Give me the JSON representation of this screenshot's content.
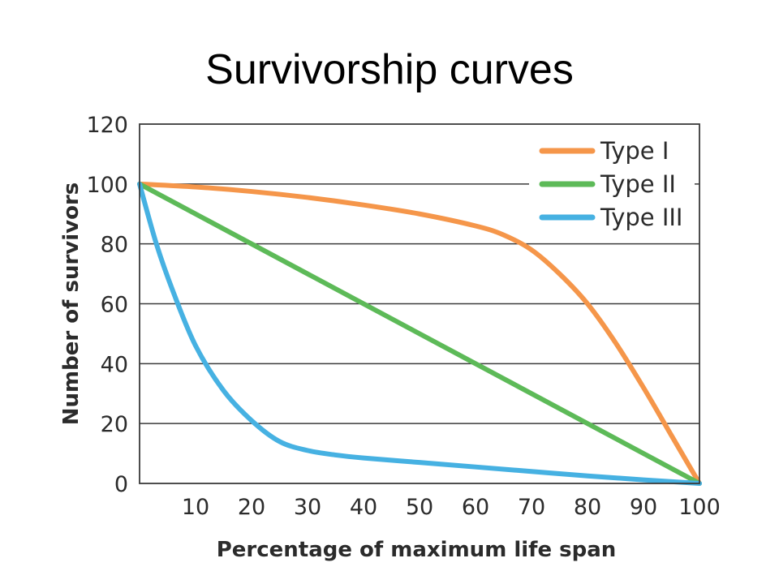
{
  "title": "Survivorship curves",
  "chart_data": {
    "type": "line",
    "xlabel": "Percentage of maximum life span",
    "ylabel": "Number of survivors",
    "xlim": [
      0,
      100
    ],
    "ylim": [
      0,
      120
    ],
    "x_ticks": [
      10,
      20,
      30,
      40,
      50,
      60,
      70,
      80,
      90,
      100
    ],
    "y_ticks": [
      0,
      20,
      40,
      60,
      80,
      100,
      120
    ],
    "grid": "horizontal",
    "legend": "top-right",
    "series": [
      {
        "name": "Type I",
        "color": "#f5964a",
        "x": [
          0,
          10,
          20,
          30,
          40,
          50,
          60,
          65,
          70,
          75,
          80,
          85,
          90,
          95,
          100
        ],
        "y": [
          100,
          99,
          97.5,
          95.5,
          93,
          90,
          86,
          83,
          78,
          70,
          60,
          47,
          32,
          16,
          0
        ]
      },
      {
        "name": "Type II",
        "color": "#5dba58",
        "x": [
          0,
          100
        ],
        "y": [
          100,
          0
        ]
      },
      {
        "name": "Type III",
        "color": "#46b1e2",
        "x": [
          0,
          3,
          6,
          10,
          15,
          20,
          25,
          30,
          35,
          40,
          50,
          60,
          70,
          80,
          90,
          100
        ],
        "y": [
          100,
          80,
          64,
          46,
          31,
          21,
          14,
          11,
          9.5,
          8.5,
          7,
          5.5,
          4,
          2.5,
          1.2,
          0
        ]
      }
    ]
  }
}
